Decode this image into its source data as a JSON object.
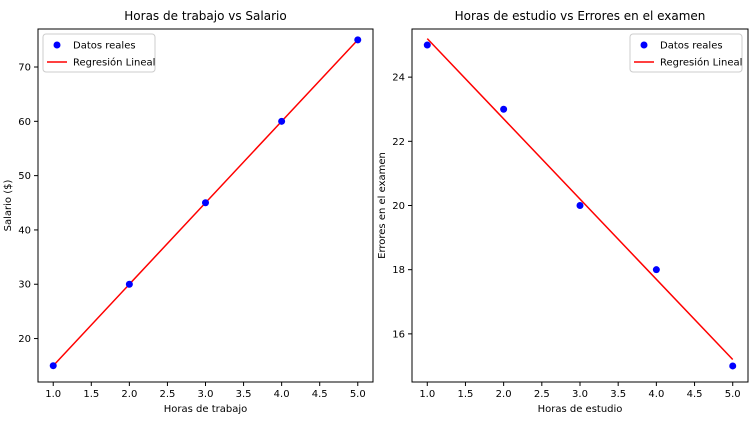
{
  "chart_data": [
    {
      "type": "scatter",
      "title": "Horas de trabajo vs Salario",
      "xlabel": "Horas de trabajo",
      "ylabel": "Salario ($)",
      "xlim": [
        0.8,
        5.2
      ],
      "ylim": [
        12,
        77
      ],
      "xticks": [
        "1.0",
        "1.5",
        "2.0",
        "2.5",
        "3.0",
        "3.5",
        "4.0",
        "4.5",
        "5.0"
      ],
      "xtick_values": [
        1.0,
        1.5,
        2.0,
        2.5,
        3.0,
        3.5,
        4.0,
        4.5,
        5.0
      ],
      "yticks": [
        "20",
        "30",
        "40",
        "50",
        "60",
        "70"
      ],
      "ytick_values": [
        20,
        30,
        40,
        50,
        60,
        70
      ],
      "legend_position": "top-left",
      "series": [
        {
          "name": "Datos reales",
          "kind": "scatter",
          "color": "#0000ff",
          "x": [
            1,
            2,
            3,
            4,
            5
          ],
          "y": [
            15,
            30,
            45,
            60,
            75
          ]
        },
        {
          "name": "Regresión Lineal",
          "kind": "line",
          "color": "#ff0000",
          "x": [
            1,
            5
          ],
          "y": [
            15,
            75
          ]
        }
      ],
      "grid": false
    },
    {
      "type": "scatter",
      "title": "Horas de estudio vs Errores en el examen",
      "xlabel": "Horas de estudio",
      "ylabel": "Errores en el examen",
      "xlim": [
        0.8,
        5.2
      ],
      "ylim": [
        14.5,
        25.5
      ],
      "xticks": [
        "1.0",
        "1.5",
        "2.0",
        "2.5",
        "3.0",
        "3.5",
        "4.0",
        "4.5",
        "5.0"
      ],
      "xtick_values": [
        1.0,
        1.5,
        2.0,
        2.5,
        3.0,
        3.5,
        4.0,
        4.5,
        5.0
      ],
      "yticks": [
        "16",
        "18",
        "20",
        "22",
        "24"
      ],
      "ytick_values": [
        16,
        18,
        20,
        22,
        24
      ],
      "legend_position": "top-right",
      "series": [
        {
          "name": "Datos reales",
          "kind": "scatter",
          "color": "#0000ff",
          "x": [
            1,
            2,
            3,
            4,
            5
          ],
          "y": [
            25,
            23,
            20,
            18,
            15
          ]
        },
        {
          "name": "Regresión Lineal",
          "kind": "line",
          "color": "#ff0000",
          "x": [
            1,
            5
          ],
          "y": [
            25.2,
            15.2
          ]
        }
      ],
      "grid": false
    }
  ]
}
